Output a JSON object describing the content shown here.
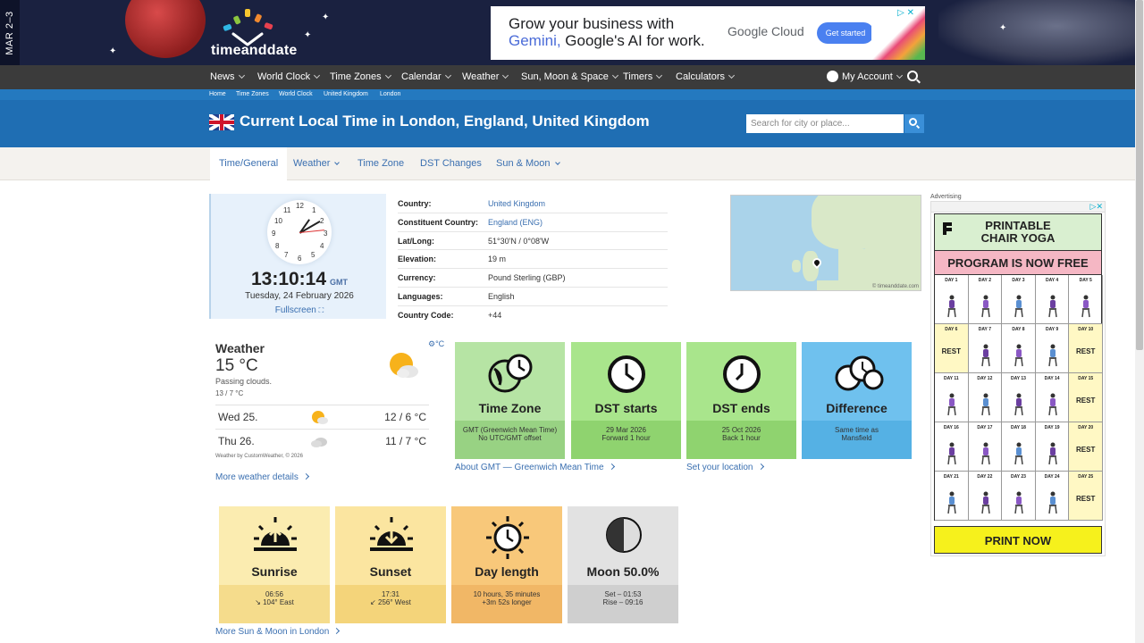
{
  "banner": {
    "date_tab": "MAR 2–3",
    "logo_text": "timeanddate",
    "ad": {
      "line1": "Grow your business with",
      "line2_highlight": "Gemini,",
      "line2_rest": " Google's AI for work.",
      "brand": "Google Cloud",
      "cta": "Get started"
    }
  },
  "nav": {
    "items": [
      "News",
      "World Clock",
      "Time Zones",
      "Calendar",
      "Weather",
      "Sun, Moon & Space",
      "Timers",
      "Calculators"
    ],
    "account": "My Account"
  },
  "breadcrumb": [
    "Home",
    "Time Zones",
    "World Clock",
    "United Kingdom",
    "London"
  ],
  "header": {
    "title": "Current Local Time in London, England, United Kingdom",
    "search_placeholder": "Search for city or place..."
  },
  "tabs": [
    "Time/General",
    "Weather",
    "Time Zone",
    "DST Changes",
    "Sun & Moon"
  ],
  "clock": {
    "numerals": [
      "12",
      "1",
      "2",
      "3",
      "4",
      "5",
      "6",
      "7",
      "8",
      "9",
      "10",
      "11"
    ],
    "time": "13:10:14",
    "tz": "GMT",
    "date": "Tuesday, 24 February 2026",
    "fullscreen": "Fullscreen"
  },
  "info": [
    {
      "key": "Country:",
      "value": "United Kingdom",
      "link": true
    },
    {
      "key": "Constituent Country:",
      "value": "England (ENG)",
      "link": true
    },
    {
      "key": "Lat/Long:",
      "value": "51°30'N / 0°08'W",
      "link": false
    },
    {
      "key": "Elevation:",
      "value": "19 m",
      "link": false
    },
    {
      "key": "Currency:",
      "value": "Pound Sterling (GBP)",
      "link": false
    },
    {
      "key": "Languages:",
      "value": "English",
      "link": false
    },
    {
      "key": "Country Code:",
      "value": "+44",
      "link": false
    }
  ],
  "map": {
    "credit": "© timeanddate.com"
  },
  "weather": {
    "title": "Weather",
    "temp": "15 °C",
    "desc": "Passing clouds.",
    "range": "13 / 7 °C",
    "units": "°C",
    "forecast": [
      {
        "day": "Wed 25.",
        "temps": "12 / 6 °C",
        "icon": "sun-cloud-icon"
      },
      {
        "day": "Thu 26.",
        "temps": "11 / 7 °C",
        "icon": "cloud-icon"
      }
    ],
    "credit": "Weather by CustomWeather, © 2026",
    "more": "More weather details"
  },
  "cards": [
    {
      "title": "Time Zone",
      "lines": [
        "GMT (Greenwich Mean Time)",
        "No UTC/GMT offset"
      ],
      "color_top": "#b6e4a4",
      "color_bot": "#98d283"
    },
    {
      "title": "DST starts",
      "lines": [
        "29 Mar 2026",
        "Forward 1 hour"
      ],
      "color_top": "#a9e58c",
      "color_bot": "#8fd36f"
    },
    {
      "title": "DST ends",
      "lines": [
        "25 Oct 2026",
        "Back 1 hour"
      ],
      "color_top": "#a9e58c",
      "color_bot": "#8fd36f"
    },
    {
      "title": "Difference",
      "lines": [
        "Same time as",
        "Mansfield"
      ],
      "color_top": "#6fc1ee",
      "color_bot": "#55b1e4"
    }
  ],
  "card_links": {
    "gmt": "About GMT — Greenwich Mean Time",
    "location": "Set your location"
  },
  "sun_cards": [
    {
      "title": "Sunrise",
      "lines": [
        "06:56",
        "104° East"
      ],
      "color_top": "#fbecb0",
      "color_bot": "#f5dc8c"
    },
    {
      "title": "Sunset",
      "lines": [
        "17:31",
        "256° West"
      ],
      "color_top": "#fbe5a0",
      "color_bot": "#f4d47a"
    },
    {
      "title": "Day length",
      "lines": [
        "10 hours, 35 minutes",
        "+3m 52s longer"
      ],
      "color_top": "#f8c87a",
      "color_bot": "#f1b766"
    },
    {
      "title": "Moon 50.0%",
      "lines": [
        "Set – 01:53",
        "Rise – 09:16"
      ],
      "color_top": "#e2e2e2",
      "color_bot": "#cfcfcf"
    }
  ],
  "sun_more": "More Sun & Moon in London",
  "side_ad": {
    "label": "Advertising",
    "header1": "PRINTABLE",
    "header2": "CHAIR YOGA",
    "sub": "PROGRAM IS NOW FREE",
    "days": [
      "DAY 1",
      "DAY 2",
      "DAY 3",
      "DAY 4",
      "DAY 5",
      "DAY 6",
      "DAY 7",
      "DAY 8",
      "DAY 9",
      "DAY 10",
      "DAY 11",
      "DAY 12",
      "DAY 13",
      "DAY 14",
      "DAY 15",
      "DAY 16",
      "DAY 17",
      "DAY 18",
      "DAY 19",
      "DAY 20",
      "DAY 21",
      "DAY 22",
      "DAY 23",
      "DAY 24",
      "DAY 25"
    ],
    "rest_days": [
      "DAY 6",
      "DAY 10",
      "DAY 15",
      "DAY 20",
      "DAY 25"
    ],
    "rest_label": "REST",
    "print": "PRINT NOW"
  }
}
